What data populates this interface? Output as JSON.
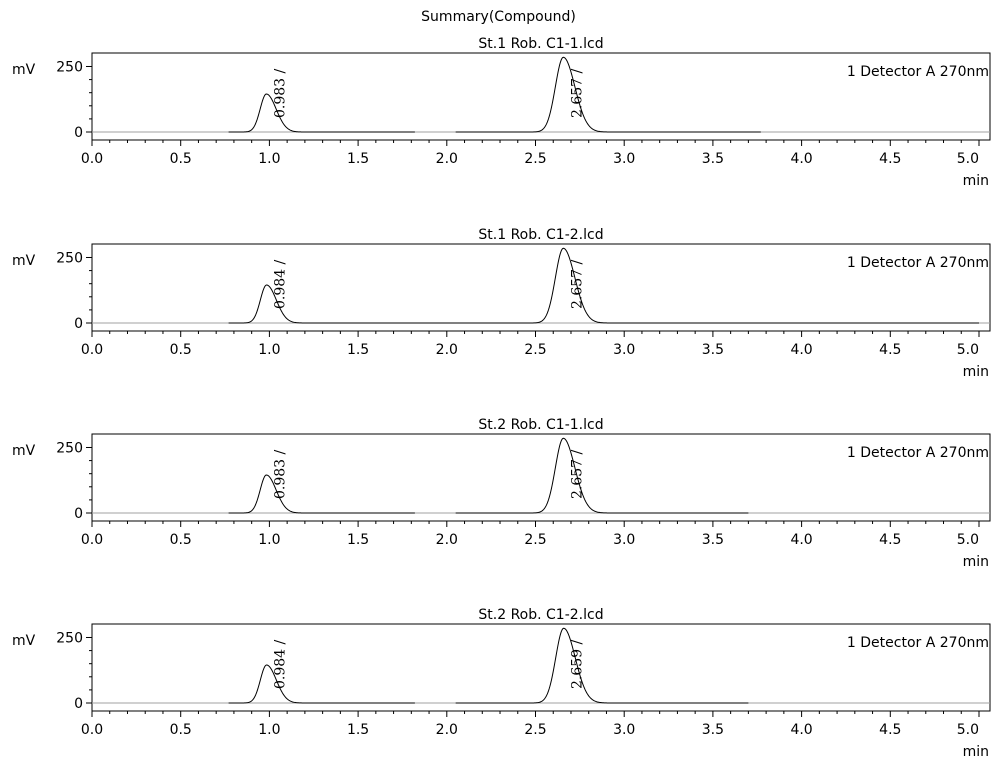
{
  "report": {
    "title": "Summary(Compound)"
  },
  "chart_data": [
    {
      "type": "line",
      "title": "St.1 Rob. C1-1.lcd",
      "xlabel": "min",
      "ylabel": "mV",
      "xlim": [
        0.0,
        5.0
      ],
      "ylim": [
        -15,
        305
      ],
      "x_ticks": [
        "0.0",
        "0.5",
        "1.0",
        "1.5",
        "2.0",
        "2.5",
        "3.0",
        "3.5",
        "4.0",
        "4.5",
        "5.0"
      ],
      "y_ticks": [
        "0",
        "250"
      ],
      "legend": "1 Detector A 270nm",
      "segments": [
        [
          0.77,
          1.82
        ],
        [
          2.05,
          3.77
        ]
      ],
      "peaks": [
        {
          "rt": 0.983,
          "label": "0.983",
          "height": 145
        },
        {
          "rt": 2.657,
          "label": "2.657",
          "height": 285
        }
      ]
    },
    {
      "type": "line",
      "title": "St.1 Rob. C1-2.lcd",
      "xlabel": "min",
      "ylabel": "mV",
      "xlim": [
        0.0,
        5.0
      ],
      "ylim": [
        -15,
        305
      ],
      "x_ticks": [
        "0.0",
        "0.5",
        "1.0",
        "1.5",
        "2.0",
        "2.5",
        "3.0",
        "3.5",
        "4.0",
        "4.5",
        "5.0"
      ],
      "y_ticks": [
        "0",
        "250"
      ],
      "legend": "1 Detector A 270nm",
      "segments": [
        [
          0.77,
          5.0
        ]
      ],
      "peaks": [
        {
          "rt": 0.984,
          "label": "0.984",
          "height": 145
        },
        {
          "rt": 2.657,
          "label": "2.657",
          "height": 285
        }
      ]
    },
    {
      "type": "line",
      "title": "St.2 Rob. C1-1.lcd",
      "xlabel": "min",
      "ylabel": "mV",
      "xlim": [
        0.0,
        5.0
      ],
      "ylim": [
        -15,
        305
      ],
      "x_ticks": [
        "0.0",
        "0.5",
        "1.0",
        "1.5",
        "2.0",
        "2.5",
        "3.0",
        "3.5",
        "4.0",
        "4.5",
        "5.0"
      ],
      "y_ticks": [
        "0",
        "250"
      ],
      "legend": "1 Detector A 270nm",
      "segments": [
        [
          0.77,
          1.82
        ],
        [
          2.05,
          3.7
        ]
      ],
      "peaks": [
        {
          "rt": 0.983,
          "label": "0.983",
          "height": 145
        },
        {
          "rt": 2.657,
          "label": "2.657",
          "height": 285
        }
      ]
    },
    {
      "type": "line",
      "title": "St.2 Rob. C1-2.lcd",
      "xlabel": "min",
      "ylabel": "mV",
      "xlim": [
        0.0,
        5.0
      ],
      "ylim": [
        -15,
        305
      ],
      "x_ticks": [
        "0.0",
        "0.5",
        "1.0",
        "1.5",
        "2.0",
        "2.5",
        "3.0",
        "3.5",
        "4.0",
        "4.5",
        "5.0"
      ],
      "y_ticks": [
        "0",
        "250"
      ],
      "legend": "1 Detector A 270nm",
      "segments": [
        [
          0.77,
          1.82
        ],
        [
          2.05,
          3.7
        ]
      ],
      "peaks": [
        {
          "rt": 0.984,
          "label": "0.984",
          "height": 145
        },
        {
          "rt": 2.659,
          "label": "2.659",
          "height": 285
        }
      ]
    }
  ]
}
